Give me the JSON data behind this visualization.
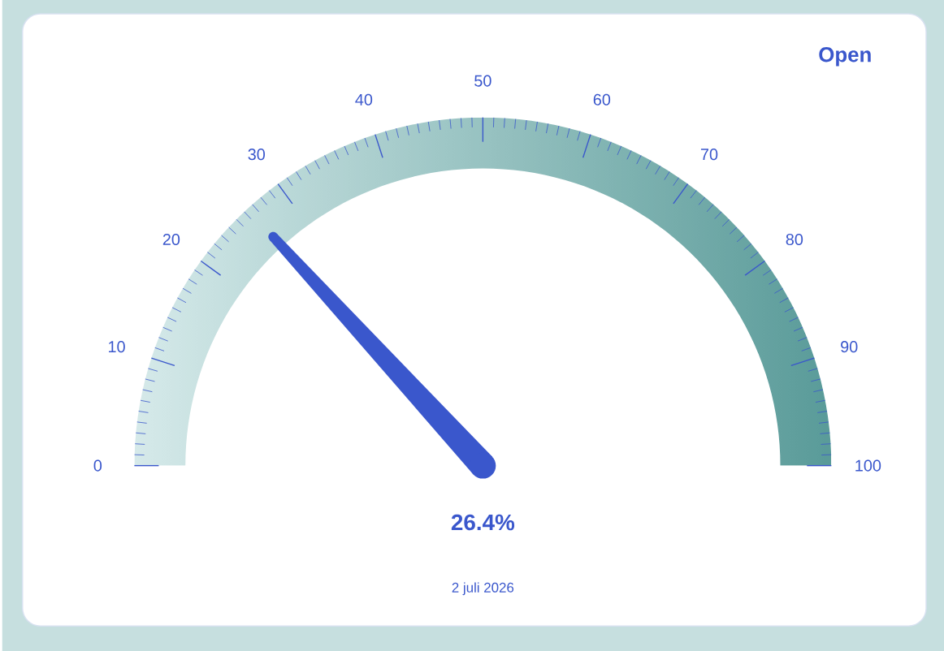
{
  "chart_data": {
    "type": "other",
    "values": [
      26.4
    ],
    "value_labels": [
      "26.4%"
    ],
    "color": "#3a57cc",
    "annotations": [
      "2 juli 2026",
      "Open",
      "0",
      "10",
      "20",
      "30",
      "40",
      "50",
      "60",
      "70",
      "80",
      "90",
      "100"
    ]
  }
}
